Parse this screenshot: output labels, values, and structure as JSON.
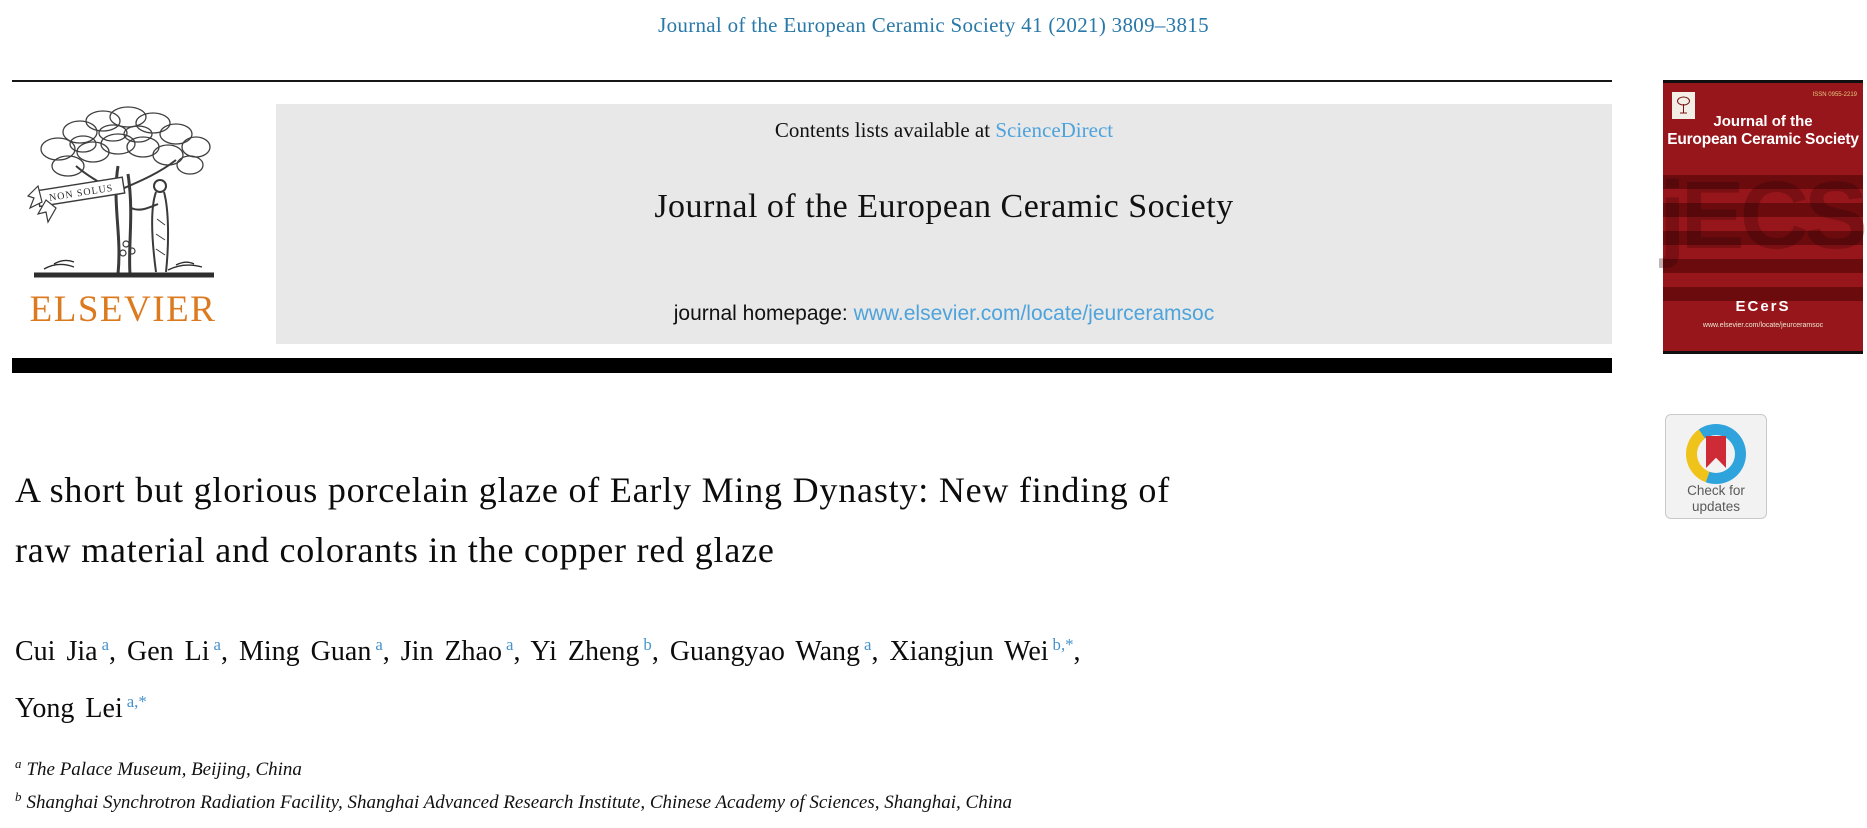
{
  "citation": "Journal of the European Ceramic Society 41 (2021) 3809–3815",
  "masthead": {
    "publisher_wordmark": "ELSEVIER",
    "logo_motto": "NON SOLUS",
    "contents_prefix": "Contents lists available at",
    "sciencedirect_link": "ScienceDirect",
    "journal_title": "Journal of the European Ceramic Society",
    "homepage_prefix": "journal homepage:",
    "homepage_url": "www.elsevier.com/locate/jeurceramsoc"
  },
  "cover": {
    "issn": "ISSN 0955-2219",
    "title_line1": "Journal of the",
    "title_line2": "European Ceramic Society",
    "watermark": "jECS",
    "society_logo": "ECerS",
    "footer_url": "www.elsevier.com/locate/jeurceramsoc"
  },
  "crossmark": {
    "line1": "Check for",
    "line2": "updates"
  },
  "article": {
    "title_line1": "A short but glorious porcelain glaze of Early Ming Dynasty: New finding of",
    "title_line2": "raw material and colorants in the copper red glaze",
    "author_lines": [
      [
        {
          "name": "Cui Jia",
          "sup": "a"
        },
        {
          "name": "Gen Li",
          "sup": "a"
        },
        {
          "name": "Ming Guan",
          "sup": "a"
        },
        {
          "name": "Jin Zhao",
          "sup": "a"
        },
        {
          "name": "Yi Zheng",
          "sup": "b"
        },
        {
          "name": "Guangyao Wang",
          "sup": "a"
        },
        {
          "name": "Xiangjun Wei",
          "sup": "b,*"
        }
      ],
      [
        {
          "name": "Yong Lei",
          "sup": "a,*"
        }
      ]
    ],
    "affiliations": [
      {
        "sup": "a",
        "text": "The Palace Museum, Beijing, China"
      },
      {
        "sup": "b",
        "text": "Shanghai Synchrotron Radiation Facility, Shanghai Advanced Research Institute, Chinese Academy of Sciences, Shanghai, China"
      }
    ]
  },
  "colors": {
    "citation_teal": "#2878a8",
    "link_blue": "#4DA3DC",
    "author_sup_blue": "#4793CF",
    "elsevier_orange": "#DC7A20",
    "banner_gray": "#E8E8E8",
    "cover_red": "#96161B",
    "crossmark_ring_blue": "#2FA3DC",
    "crossmark_ring_yellow": "#EFC31A",
    "crossmark_bookmark_red": "#CE2B37"
  }
}
